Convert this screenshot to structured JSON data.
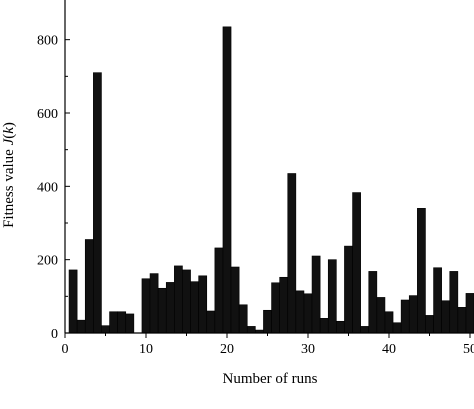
{
  "chart_data": {
    "type": "bar",
    "xlabel": "Number of runs",
    "ylabel": "Fitness value J(k)",
    "ylabel_parts": {
      "prefix": "Fitness value ",
      "var": "J",
      "open": "(",
      "arg": "k",
      "close": ")"
    },
    "xlim": [
      0,
      50
    ],
    "ylim": [
      0,
      900
    ],
    "xticks": [
      0,
      10,
      20,
      30,
      40,
      50
    ],
    "yticks": [
      0,
      200,
      400,
      600,
      800
    ],
    "x": [
      1,
      2,
      3,
      4,
      5,
      6,
      7,
      8,
      9,
      10,
      11,
      12,
      13,
      14,
      15,
      16,
      17,
      18,
      19,
      20,
      21,
      22,
      23,
      24,
      25,
      26,
      27,
      28,
      29,
      30,
      31,
      32,
      33,
      34,
      35,
      36,
      37,
      38,
      39,
      40,
      41,
      42,
      43,
      44,
      45,
      46,
      47,
      48,
      49,
      50
    ],
    "values": [
      172,
      35,
      255,
      710,
      20,
      58,
      58,
      52,
      0,
      148,
      162,
      122,
      138,
      183,
      172,
      140,
      156,
      60,
      232,
      835,
      180,
      77,
      18,
      8,
      62,
      137,
      152,
      435,
      115,
      107,
      210,
      40,
      200,
      32,
      237,
      383,
      18,
      168,
      97,
      58,
      28,
      90,
      102,
      340,
      48,
      178,
      88,
      168,
      70,
      108
    ],
    "bar_color": "#111111",
    "grid": false
  }
}
